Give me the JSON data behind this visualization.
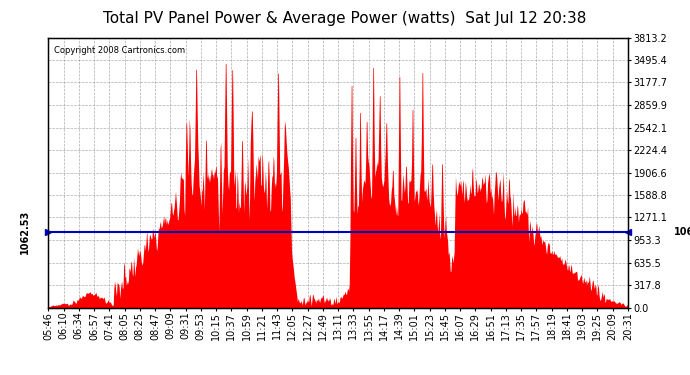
{
  "title": "Total PV Panel Power & Average Power (watts)  Sat Jul 12 20:38",
  "copyright": "Copyright 2008 Cartronics.com",
  "avg_value": 1062.53,
  "y_max": 3813.2,
  "y_ticks": [
    0.0,
    317.8,
    635.5,
    953.3,
    1271.1,
    1588.8,
    1906.6,
    2224.4,
    2542.1,
    2859.9,
    3177.7,
    3495.4,
    3813.2
  ],
  "x_labels": [
    "05:46",
    "06:10",
    "06:34",
    "06:57",
    "07:41",
    "08:05",
    "08:25",
    "08:47",
    "09:09",
    "09:31",
    "09:53",
    "10:15",
    "10:37",
    "10:59",
    "11:21",
    "11:43",
    "12:05",
    "12:27",
    "12:49",
    "13:11",
    "13:33",
    "13:55",
    "14:17",
    "14:39",
    "15:01",
    "15:23",
    "15:45",
    "16:07",
    "16:29",
    "16:51",
    "17:13",
    "17:35",
    "17:57",
    "18:19",
    "18:41",
    "19:03",
    "19:25",
    "20:09",
    "20:31"
  ],
  "fill_color": "#ff0000",
  "line_color": "#0000bb",
  "bg_color": "#ffffff",
  "grid_color": "#999999",
  "title_fontsize": 11,
  "label_fontsize": 7
}
